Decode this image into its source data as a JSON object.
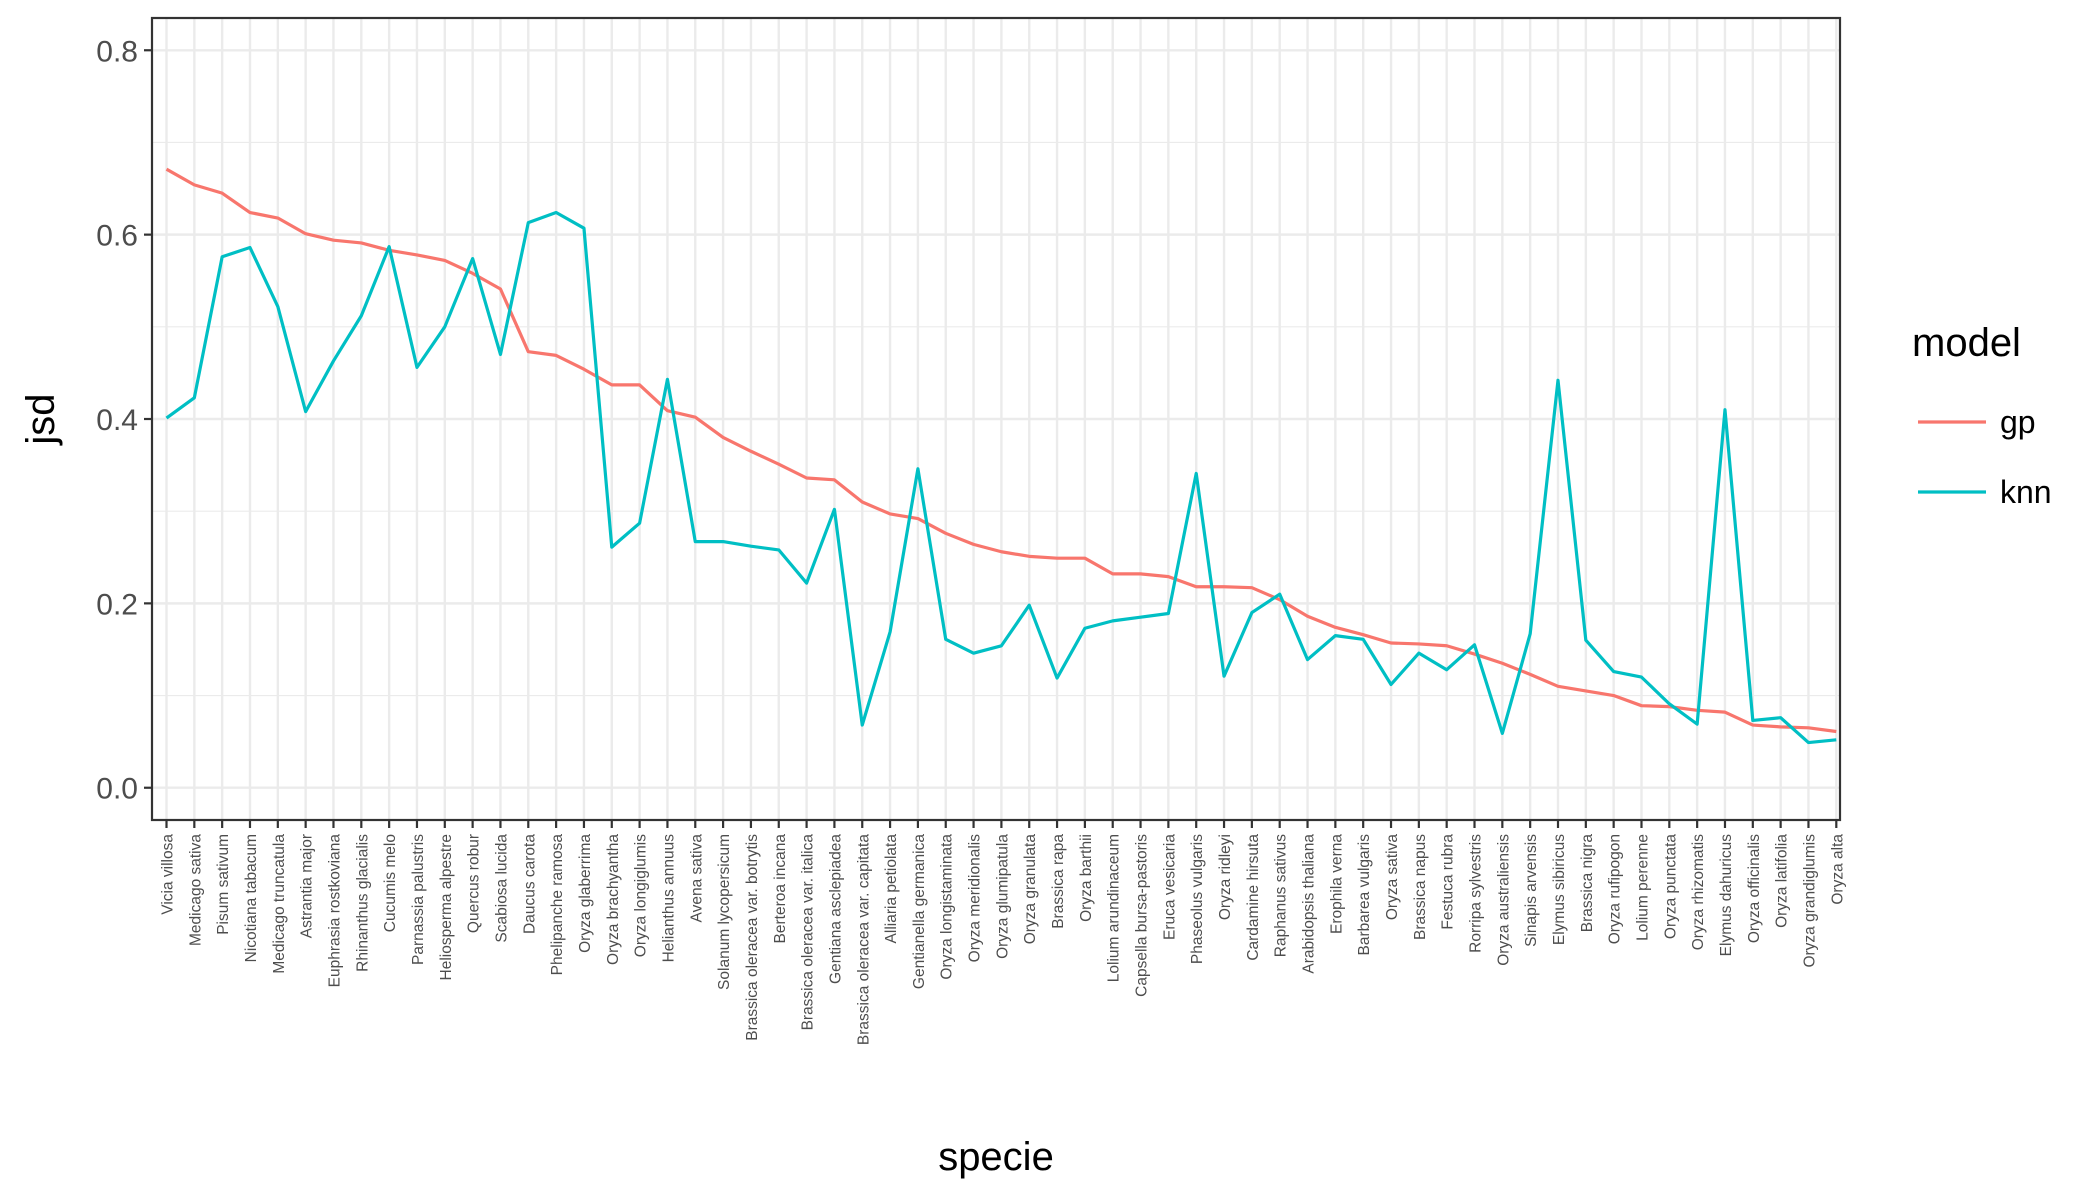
{
  "chart_data": {
    "type": "line",
    "xlabel": "specie",
    "ylabel": "jsd",
    "ylim": [
      -0.035,
      0.835
    ],
    "yticks": [
      0.0,
      0.2,
      0.4,
      0.6,
      0.8
    ],
    "ytick_labels": [
      "0.0",
      "0.2",
      "0.4",
      "0.6",
      "0.8"
    ],
    "grid": true,
    "legend": {
      "title": "model",
      "position": "right"
    },
    "categories": [
      "Vicia villosa",
      "Medicago sativa",
      "Pisum sativum",
      "Nicotiana tabacum",
      "Medicago truncatula",
      "Astrantia major",
      "Euphrasia rostkoviana",
      "Rhinanthus glacialis",
      "Cucumis melo",
      "Parnassia palustris",
      "Heliosperma alpestre",
      "Quercus robur",
      "Scabiosa lucida",
      "Daucus carota",
      "Phelipanche ramosa",
      "Oryza glaberrima",
      "Oryza brachyantha",
      "Oryza longiglumis",
      "Helianthus annuus",
      "Avena sativa",
      "Solanum lycopersicum",
      "Brassica oleracea var. botrytis",
      "Berteroa incana",
      "Brassica oleracea var. italica",
      "Gentiana asclepiadea",
      "Brassica oleracea var. capitata",
      "Alliaria petiolata",
      "Gentianella germanica",
      "Oryza longistaminata",
      "Oryza meridionalis",
      "Oryza glumipatula",
      "Oryza granulata",
      "Brassica rapa",
      "Oryza barthii",
      "Lolium arundinaceum",
      "Capsella bursa-pastoris",
      "Eruca vesicaria",
      "Phaseolus vulgaris",
      "Oryza ridleyi",
      "Cardamine hirsuta",
      "Raphanus sativus",
      "Arabidopsis thaliana",
      "Erophila verna",
      "Barbarea vulgaris",
      "Oryza sativa",
      "Brassica napus",
      "Festuca rubra",
      "Rorripa sylvestris",
      "Oryza australiensis",
      "Sinapis arvensis",
      "Elymus sibiricus",
      "Brassica nigra",
      "Oryza rufipogon",
      "Lolium perenne",
      "Oryza punctata",
      "Oryza rhizomatis",
      "Elymus dahuricus",
      "Oryza officinalis",
      "Oryza latifolia",
      "Oryza grandiglumis",
      "Oryza alta"
    ],
    "series": [
      {
        "name": "gp",
        "color": "#F8766D",
        "values": [
          0.671,
          0.654,
          0.645,
          0.624,
          0.618,
          0.601,
          0.594,
          0.591,
          0.583,
          0.578,
          0.572,
          0.558,
          0.541,
          0.473,
          0.469,
          0.454,
          0.437,
          0.437,
          0.409,
          0.402,
          0.38,
          0.365,
          0.351,
          0.336,
          0.334,
          0.31,
          0.297,
          0.292,
          0.276,
          0.264,
          0.256,
          0.251,
          0.249,
          0.249,
          0.232,
          0.232,
          0.229,
          0.218,
          0.218,
          0.217,
          0.204,
          0.186,
          0.174,
          0.166,
          0.157,
          0.156,
          0.154,
          0.145,
          0.135,
          0.123,
          0.11,
          0.105,
          0.1,
          0.089,
          0.088,
          0.084,
          0.082,
          0.068,
          0.066,
          0.065,
          0.061
        ]
      },
      {
        "name": "knn",
        "color": "#00BFC4",
        "values": [
          0.401,
          0.423,
          0.576,
          0.586,
          0.522,
          0.408,
          0.463,
          0.512,
          0.587,
          0.456,
          0.5,
          0.574,
          0.47,
          0.613,
          0.624,
          0.607,
          0.261,
          0.287,
          0.443,
          0.267,
          0.267,
          0.262,
          0.258,
          0.222,
          0.302,
          0.068,
          0.169,
          0.346,
          0.161,
          0.146,
          0.154,
          0.198,
          0.119,
          0.173,
          0.181,
          0.185,
          0.189,
          0.341,
          0.121,
          0.19,
          0.21,
          0.139,
          0.165,
          0.161,
          0.112,
          0.146,
          0.128,
          0.155,
          0.059,
          0.167,
          0.442,
          0.16,
          0.126,
          0.12,
          0.091,
          0.069,
          0.41,
          0.073,
          0.076,
          0.049,
          0.052
        ]
      }
    ]
  }
}
